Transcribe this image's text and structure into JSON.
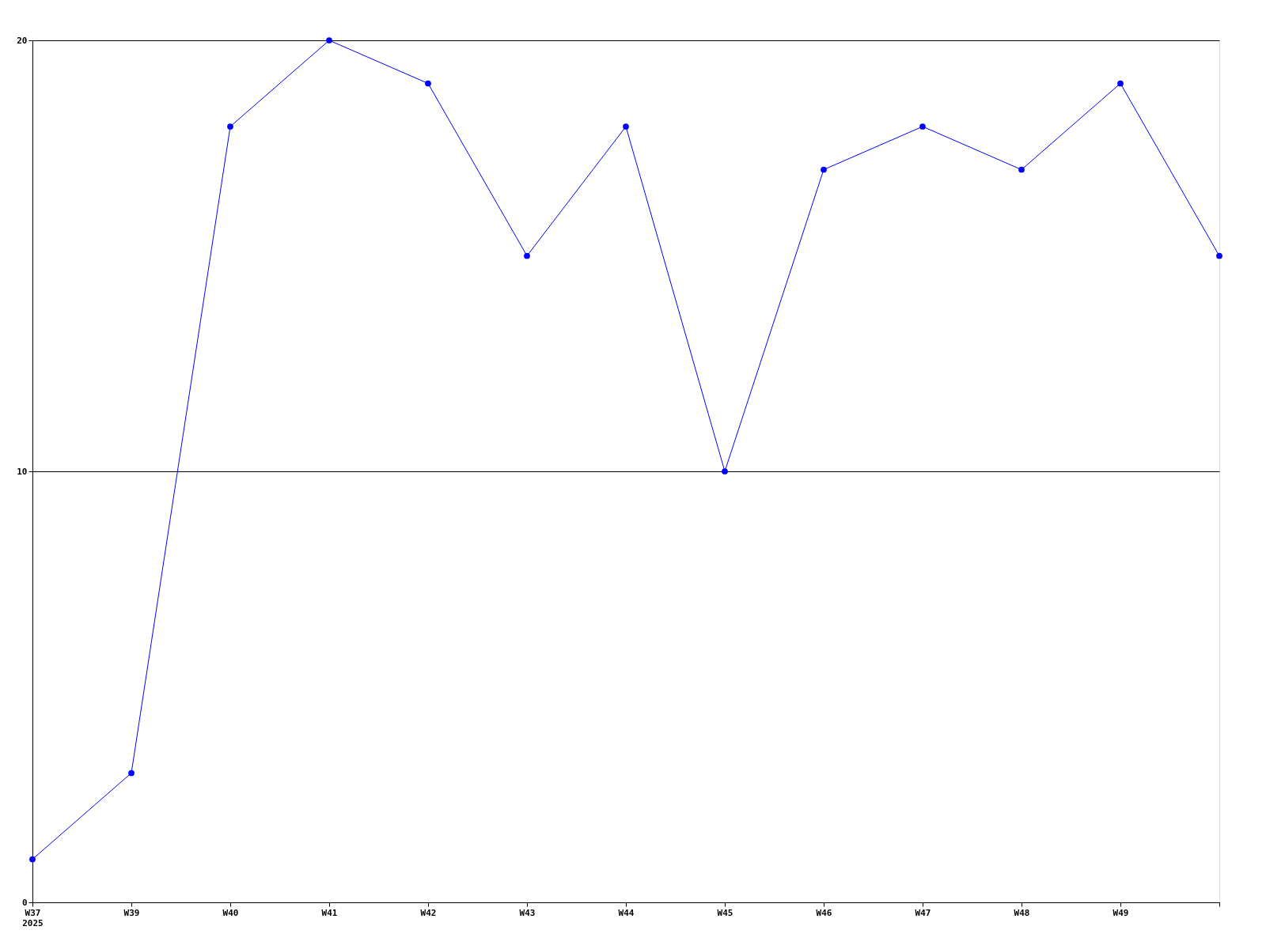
{
  "chart_data": {
    "type": "line",
    "categories": [
      "W37\n2025",
      "W39",
      "W40",
      "W41",
      "W42",
      "W43",
      "W44",
      "W45",
      "W46",
      "W47",
      "W48",
      "W49",
      null
    ],
    "series": [
      {
        "color": "#0000ff",
        "values": [
          1,
          3,
          18,
          20,
          19,
          15,
          18,
          10,
          17,
          18,
          17,
          19,
          15
        ]
      }
    ],
    "ylim": [
      0,
      20
    ],
    "yticks": [
      0,
      10,
      20
    ],
    "grid": "y",
    "marker": "circle",
    "line_style": "solid"
  }
}
